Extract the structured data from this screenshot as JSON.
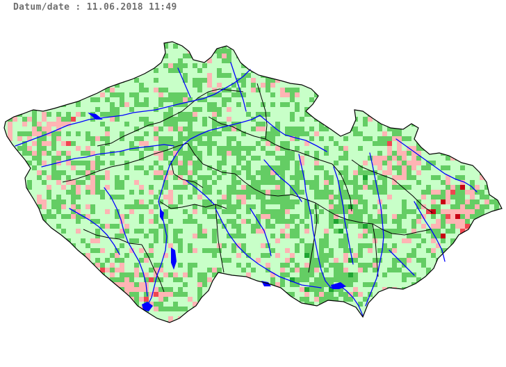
{
  "header": {
    "date_label": "Datum/date : 11.06.2018 11:49"
  },
  "map": {
    "country": "Czech Republic",
    "features": [
      "regional boundaries",
      "rivers",
      "water reservoirs"
    ],
    "colors": {
      "background": "#ffffff",
      "pale_green": "#c8ffc8",
      "green": "#64cd64",
      "dark_green": "#1ea532",
      "pink": "#ffb4b4",
      "red": "#f04650",
      "dark_red": "#c80014",
      "rivers": "#0000ff",
      "boundaries": "#000000"
    }
  }
}
